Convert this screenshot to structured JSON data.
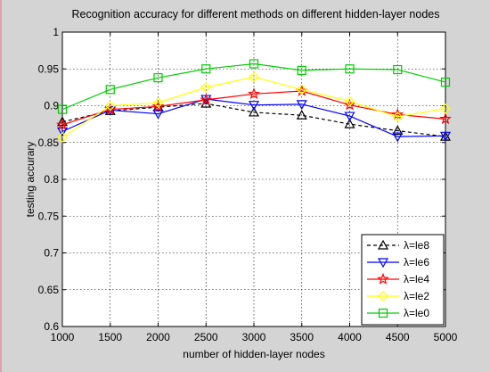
{
  "chart_data": {
    "type": "line",
    "title": "Recognition accuracy for different methods on different hidden-layer nodes",
    "xlabel": "number of hidden-layer nodes",
    "ylabel": "testing accurary",
    "x": [
      1000,
      1500,
      2000,
      2500,
      3000,
      3500,
      4000,
      4500,
      5000
    ],
    "xlim": [
      1000,
      5000
    ],
    "ylim": [
      0.6,
      1.0
    ],
    "xticks": [
      "1000",
      "1500",
      "2000",
      "2500",
      "3000",
      "3500",
      "4000",
      "4500",
      "5000"
    ],
    "yticks": [
      "0.6",
      "0.65",
      "0.7",
      "0.75",
      "0.8",
      "0.85",
      "0.9",
      "0.95",
      "1"
    ],
    "grid": true,
    "legend_position": "bottom-right",
    "series": [
      {
        "name": "λ=le8",
        "color": "#000000",
        "dash": "dashed",
        "marker": "triangle-up",
        "values": [
          0.878,
          0.893,
          0.898,
          0.903,
          0.891,
          0.887,
          0.875,
          0.866,
          0.858
        ]
      },
      {
        "name": "λ=le6",
        "color": "#0000ff",
        "dash": "solid",
        "marker": "triangle-down",
        "values": [
          0.865,
          0.894,
          0.889,
          0.909,
          0.901,
          0.902,
          0.886,
          0.858,
          0.859
        ]
      },
      {
        "name": "λ=le4",
        "color": "#ff0000",
        "dash": "solid",
        "marker": "star",
        "values": [
          0.874,
          0.895,
          0.899,
          0.908,
          0.916,
          0.92,
          0.901,
          0.888,
          0.882
        ]
      },
      {
        "name": "λ=le2",
        "color": "#ffff00",
        "dash": "solid",
        "marker": "diamond",
        "values": [
          0.857,
          0.9,
          0.904,
          0.925,
          0.939,
          0.922,
          0.906,
          0.885,
          0.896
        ]
      },
      {
        "name": "λ=le0",
        "color": "#00cc00",
        "dash": "solid",
        "marker": "square",
        "values": [
          0.895,
          0.922,
          0.938,
          0.95,
          0.957,
          0.948,
          0.95,
          0.949,
          0.932
        ]
      }
    ]
  }
}
